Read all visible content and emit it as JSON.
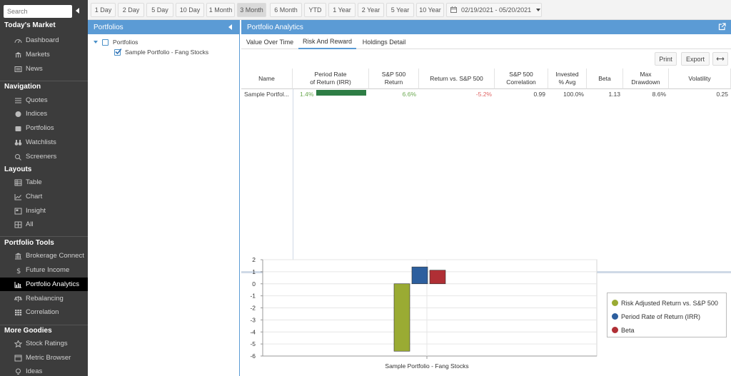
{
  "sidebar": {
    "search_placeholder": "Search",
    "sections": [
      {
        "title": "Today's Market",
        "items": [
          {
            "label": "Dashboard",
            "icon": "dashboard-icon"
          },
          {
            "label": "Markets",
            "icon": "markets-icon"
          },
          {
            "label": "News",
            "icon": "news-icon"
          }
        ]
      },
      {
        "title": "Navigation",
        "items": [
          {
            "label": "Quotes",
            "icon": "quotes-icon"
          },
          {
            "label": "Indices",
            "icon": "globe-icon"
          },
          {
            "label": "Portfolios",
            "icon": "portfolio-icon"
          },
          {
            "label": "Watchlists",
            "icon": "binoculars-icon"
          },
          {
            "label": "Screeners",
            "icon": "search-icon"
          }
        ]
      },
      {
        "title": "Layouts",
        "items": [
          {
            "label": "Table",
            "icon": "table-icon"
          },
          {
            "label": "Chart",
            "icon": "line-chart-icon"
          },
          {
            "label": "Insight",
            "icon": "insight-icon"
          },
          {
            "label": "All",
            "icon": "all-icon"
          }
        ]
      },
      {
        "title": "Portfolio Tools",
        "items": [
          {
            "label": "Brokerage Connect",
            "icon": "bank-icon"
          },
          {
            "label": "Future Income",
            "icon": "dollar-icon"
          },
          {
            "label": "Portfolio Analytics",
            "icon": "bar-chart-icon",
            "active": true
          },
          {
            "label": "Rebalancing",
            "icon": "scale-icon"
          },
          {
            "label": "Correlation",
            "icon": "grid-icon"
          }
        ]
      },
      {
        "title": "More Goodies",
        "items": [
          {
            "label": "Stock Ratings",
            "icon": "star-icon"
          },
          {
            "label": "Metric Browser",
            "icon": "browser-icon"
          },
          {
            "label": "Ideas",
            "icon": "lightbulb-icon"
          }
        ]
      }
    ]
  },
  "toolbar": {
    "ranges": [
      "1 Day",
      "2 Day",
      "5 Day",
      "10 Day",
      "1 Month",
      "3 Month",
      "6 Month",
      "YTD",
      "1 Year",
      "2 Year",
      "5 Year",
      "10 Year"
    ],
    "active_range": "3 Month",
    "date_range": "02/19/2021 - 05/20/2021"
  },
  "portfolios_panel": {
    "title": "Portfolios",
    "root_label": "Portfolios",
    "child_label": "Sample Portfolio - Fang Stocks",
    "child_checked": true
  },
  "analytics": {
    "title": "Portfolio Analytics",
    "tabs": [
      "Value Over Time",
      "Risk And Reward",
      "Holdings Detail"
    ],
    "active_tab": "Risk And Reward",
    "print_label": "Print",
    "export_label": "Export",
    "expand_icon": "double-arrow-icon",
    "popout_icon": "external-link-icon"
  },
  "table": {
    "columns": [
      "Name",
      "Period Rate\nof Return (IRR)",
      "S&P 500\nReturn",
      "Return vs. S&P 500",
      "S&P 500\nCorrelation",
      "Invested\n% Avg",
      "Beta",
      "Max\nDrawdown",
      "Volatility"
    ],
    "rows": [
      {
        "name": "Sample Portfol...",
        "irr": "1.4%",
        "irr_bar_fraction": 1.0,
        "sp500_return": "6.6%",
        "return_vs_sp": "-5.2%",
        "correlation": "0.99",
        "invested": "100.0%",
        "beta": "1.13",
        "max_drawdown": "8.6%",
        "volatility": "0.25"
      }
    ],
    "colors": {
      "positive": "#6aa84f",
      "negative": "#e06666",
      "bar": "#2e7d45"
    }
  },
  "chart_data": {
    "type": "bar",
    "categories": [
      "Sample Portfolio - Fang Stocks"
    ],
    "series": [
      {
        "name": "Risk Adjusted Return vs. S&P 500",
        "values": [
          -5.6
        ],
        "color": "#9aab33"
      },
      {
        "name": "Period Rate of Return (IRR)",
        "values": [
          1.4
        ],
        "color": "#2d5f9e"
      },
      {
        "name": "Beta",
        "values": [
          1.13
        ],
        "color": "#b02f35"
      }
    ],
    "ylim": [
      -6,
      2
    ],
    "yticks": [
      "2",
      "1",
      "0",
      "-1",
      "-2",
      "-3",
      "-4",
      "-5",
      "-6"
    ],
    "grid": true,
    "legend_position": "right"
  }
}
